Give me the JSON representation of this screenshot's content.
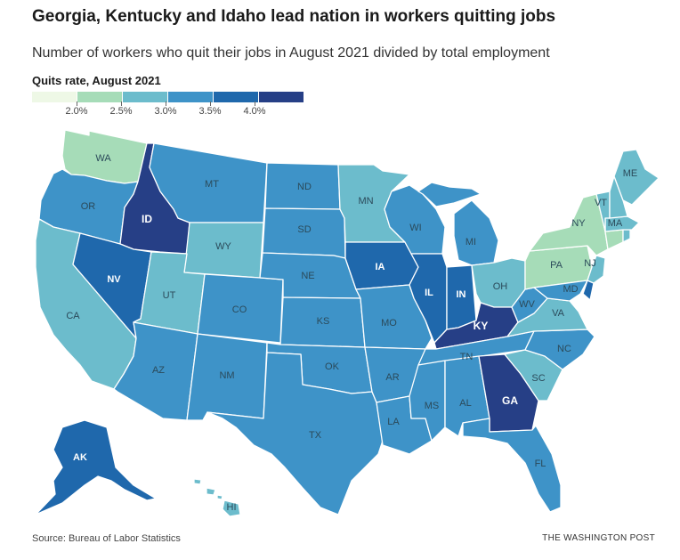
{
  "title": "Georgia, Kentucky and Idaho lead nation in workers quitting jobs",
  "subtitle": "Number of workers who quit their jobs in August 2021 divided by total employment",
  "legend": {
    "title": "Quits rate, August 2021",
    "colors": [
      "#eef8e6",
      "#a6dcb8",
      "#6cbccc",
      "#3e93c8",
      "#1f68ac",
      "#263f86"
    ],
    "ticks": [
      "2.0%",
      "2.5%",
      "3.0%",
      "3.5%",
      "4.0%"
    ]
  },
  "states": [
    {
      "abbr": "WA",
      "bin": 1
    },
    {
      "abbr": "OR",
      "bin": 3
    },
    {
      "abbr": "CA",
      "bin": 2
    },
    {
      "abbr": "ID",
      "bin": 5
    },
    {
      "abbr": "NV",
      "bin": 4
    },
    {
      "abbr": "MT",
      "bin": 3
    },
    {
      "abbr": "WY",
      "bin": 2
    },
    {
      "abbr": "UT",
      "bin": 2
    },
    {
      "abbr": "AZ",
      "bin": 3
    },
    {
      "abbr": "CO",
      "bin": 3
    },
    {
      "abbr": "NM",
      "bin": 3
    },
    {
      "abbr": "ND",
      "bin": 3
    },
    {
      "abbr": "SD",
      "bin": 3
    },
    {
      "abbr": "NE",
      "bin": 3
    },
    {
      "abbr": "KS",
      "bin": 3
    },
    {
      "abbr": "OK",
      "bin": 3
    },
    {
      "abbr": "TX",
      "bin": 3
    },
    {
      "abbr": "MN",
      "bin": 2
    },
    {
      "abbr": "IA",
      "bin": 4
    },
    {
      "abbr": "MO",
      "bin": 3
    },
    {
      "abbr": "AR",
      "bin": 3
    },
    {
      "abbr": "LA",
      "bin": 3
    },
    {
      "abbr": "WI",
      "bin": 3
    },
    {
      "abbr": "IL",
      "bin": 4
    },
    {
      "abbr": "IN",
      "bin": 4
    },
    {
      "abbr": "MI",
      "bin": 3
    },
    {
      "abbr": "OH",
      "bin": 2
    },
    {
      "abbr": "KY",
      "bin": 5
    },
    {
      "abbr": "TN",
      "bin": 3
    },
    {
      "abbr": "MS",
      "bin": 3
    },
    {
      "abbr": "AL",
      "bin": 3
    },
    {
      "abbr": "GA",
      "bin": 5
    },
    {
      "abbr": "FL",
      "bin": 3
    },
    {
      "abbr": "SC",
      "bin": 2
    },
    {
      "abbr": "NC",
      "bin": 3
    },
    {
      "abbr": "VA",
      "bin": 2
    },
    {
      "abbr": "WV",
      "bin": 3
    },
    {
      "abbr": "PA",
      "bin": 1
    },
    {
      "abbr": "NY",
      "bin": 1
    },
    {
      "abbr": "MD",
      "bin": 3
    },
    {
      "abbr": "DE",
      "bin": 4
    },
    {
      "abbr": "NJ",
      "bin": 2
    },
    {
      "abbr": "CT",
      "bin": 1
    },
    {
      "abbr": "RI",
      "bin": 2
    },
    {
      "abbr": "MA",
      "bin": 2
    },
    {
      "abbr": "VT",
      "bin": 2
    },
    {
      "abbr": "NH",
      "bin": 2
    },
    {
      "abbr": "ME",
      "bin": 2
    },
    {
      "abbr": "AK",
      "bin": 4
    },
    {
      "abbr": "HI",
      "bin": 2
    }
  ],
  "source": "Source: Bureau of Labor Statistics",
  "credit": "THE WASHINGTON POST"
}
